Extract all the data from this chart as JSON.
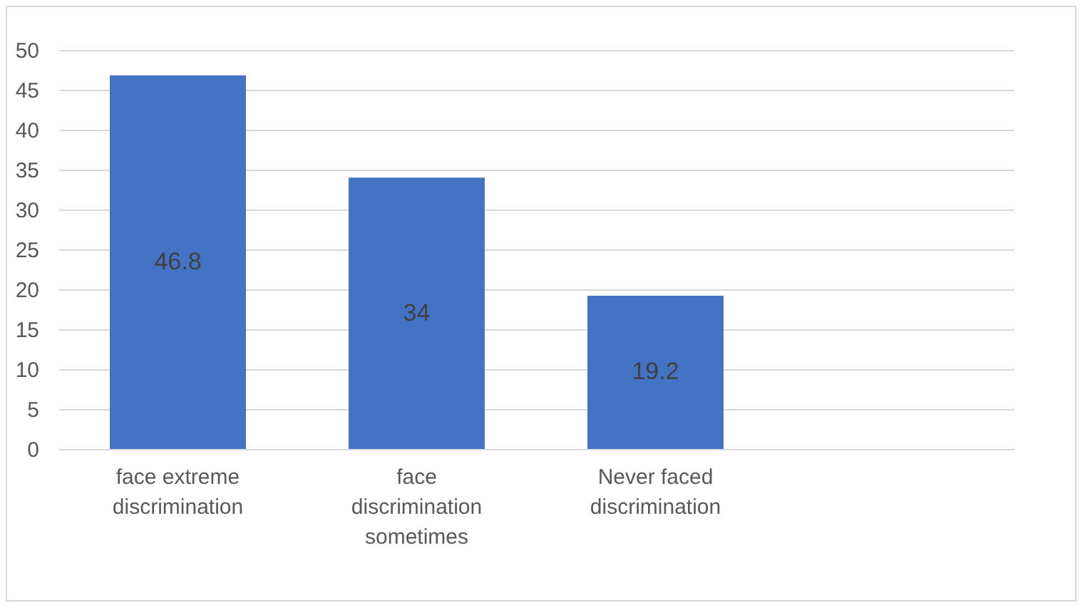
{
  "chart_data": {
    "type": "bar",
    "categories": [
      "face extreme discrimination",
      "face discrimination sometimes",
      "Never faced discrimination",
      null
    ],
    "values": [
      46.8,
      34,
      19.2,
      null
    ],
    "color": "#4472c4",
    "ylim": [
      0,
      50
    ],
    "yticks": [
      0,
      5,
      10,
      15,
      20,
      25,
      30,
      35,
      40,
      45,
      50
    ],
    "grid": "y",
    "data_labels": true
  }
}
